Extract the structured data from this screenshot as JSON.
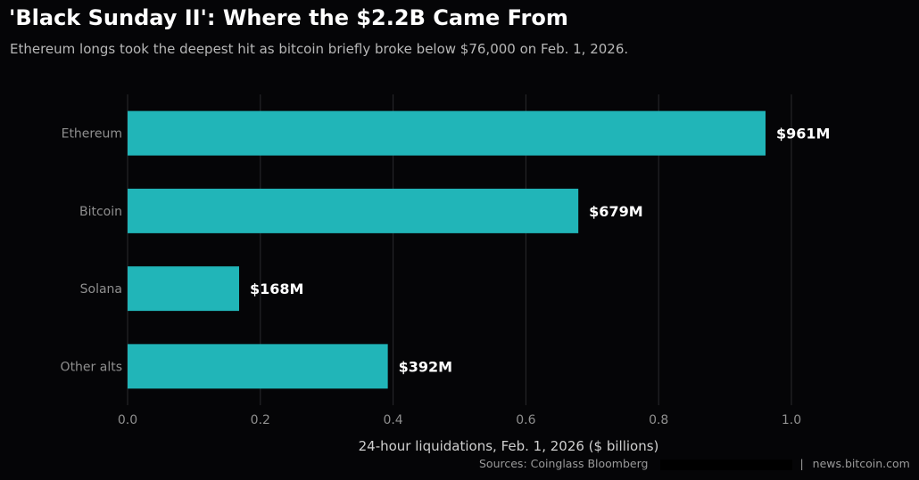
{
  "title": "'Black Sunday II': Where the $2.2B Came From",
  "subtitle": "Ethereum longs took the deepest hit as bitcoin briefly broke below $76,000 on Feb. 1, 2026.",
  "source": {
    "sources_label": "Sources: Coinglass  Bloomberg",
    "separator": "|",
    "site": "news.bitcoin.com"
  },
  "colors": {
    "background": "#050507",
    "bar": "#21b5b8",
    "grid": "#2a2a2d",
    "tick_text": "#8f8f8f",
    "label_text": "#ffffff"
  },
  "chart_data": {
    "type": "bar",
    "orientation": "horizontal",
    "categories": [
      "Ethereum",
      "Bitcoin",
      "Solana",
      "Other alts"
    ],
    "values": [
      0.961,
      0.679,
      0.168,
      0.392
    ],
    "data_labels": [
      "$961M",
      "$679M",
      "$168M",
      "$392M"
    ],
    "xlabel": "24-hour liquidations, Feb. 1, 2026 ($ billions)",
    "ylabel": "",
    "xlim": [
      0.0,
      1.0
    ],
    "xticks": [
      "0.0",
      "0.2",
      "0.4",
      "0.6",
      "0.8",
      "1.0"
    ],
    "xtick_values": [
      0.0,
      0.2,
      0.4,
      0.6,
      0.8,
      1.0
    ],
    "grid": true,
    "legend": "none"
  }
}
